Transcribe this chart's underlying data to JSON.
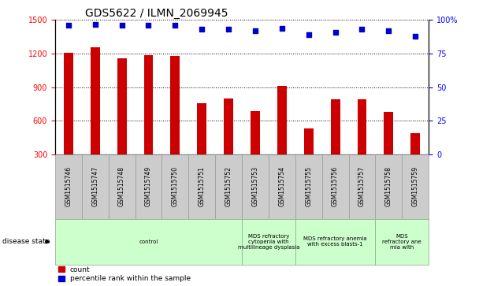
{
  "title": "GDS5622 / ILMN_2069945",
  "samples": [
    "GSM1515746",
    "GSM1515747",
    "GSM1515748",
    "GSM1515749",
    "GSM1515750",
    "GSM1515751",
    "GSM1515752",
    "GSM1515753",
    "GSM1515754",
    "GSM1515755",
    "GSM1515756",
    "GSM1515757",
    "GSM1515758",
    "GSM1515759"
  ],
  "counts": [
    1210,
    1260,
    1160,
    1185,
    1180,
    760,
    800,
    690,
    910,
    530,
    790,
    790,
    680,
    490
  ],
  "percentile_ranks": [
    96,
    97,
    96,
    96,
    96,
    93,
    93,
    92,
    94,
    89,
    91,
    93,
    92,
    88
  ],
  "bar_color": "#cc0000",
  "dot_color": "#0000cc",
  "ylim_left": [
    300,
    1500
  ],
  "ylim_right": [
    0,
    100
  ],
  "yticks_left": [
    300,
    600,
    900,
    1200,
    1500
  ],
  "yticks_right": [
    0,
    25,
    50,
    75,
    100
  ],
  "disease_groups": [
    {
      "label": "control",
      "start": 0,
      "end": 7,
      "color": "#ccffcc"
    },
    {
      "label": "MDS refractory\ncytopenia with\nmultilineage dysplasia",
      "start": 7,
      "end": 9,
      "color": "#ccffcc"
    },
    {
      "label": "MDS refractory anemia\nwith excess blasts-1",
      "start": 9,
      "end": 12,
      "color": "#ccffcc"
    },
    {
      "label": "MDS\nrefractory ane\nmia with",
      "start": 12,
      "end": 14,
      "color": "#ccffcc"
    }
  ],
  "disease_state_label": "disease state",
  "legend_count_label": "count",
  "legend_percentile_label": "percentile rank within the sample",
  "grid_color": "#000000",
  "bg_color": "#ffffff",
  "tick_label_bg": "#cccccc",
  "sample_box_edge": "#999999"
}
